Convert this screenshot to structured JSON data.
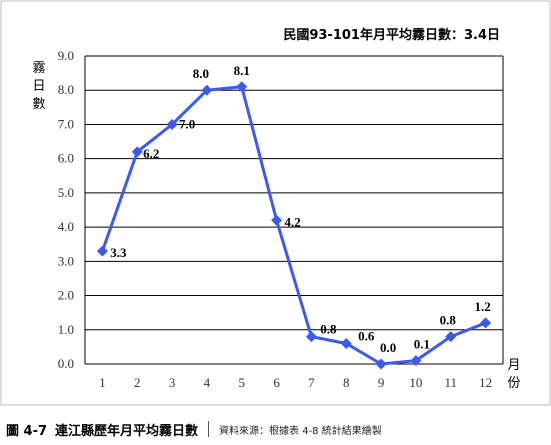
{
  "caption": {
    "label": "圖 4-7",
    "title": "連江縣歷年月平均霧日數",
    "source": "資料來源：根據表 4-8 統計結果繪製"
  },
  "chart_data": {
    "type": "line",
    "annotation": "民國93-101年月平均霧日數：3.4日",
    "ylabel": "霧日數",
    "xlabel": "月份",
    "categories": [
      "1",
      "2",
      "3",
      "4",
      "5",
      "6",
      "7",
      "8",
      "9",
      "10",
      "11",
      "12"
    ],
    "series": [
      {
        "values": [
          3.3,
          6.2,
          7.0,
          8.0,
          8.1,
          4.2,
          0.8,
          0.6,
          0.0,
          0.1,
          0.8,
          1.2
        ]
      }
    ],
    "data_labels": [
      "3.3",
      "6.2",
      "7.0",
      "8.0",
      "8.1",
      "4.2",
      "0.8",
      "0.6",
      "0.0",
      "0.1",
      "0.8",
      "1.2"
    ],
    "yticks": [
      "0.0",
      "1.0",
      "2.0",
      "3.0",
      "4.0",
      "5.0",
      "6.0",
      "7.0",
      "8.0",
      "9.0"
    ],
    "ylim": [
      0,
      9
    ],
    "grid": true,
    "legend": "none",
    "line_color": "#3b5bf0",
    "grid_color": "#000000"
  }
}
